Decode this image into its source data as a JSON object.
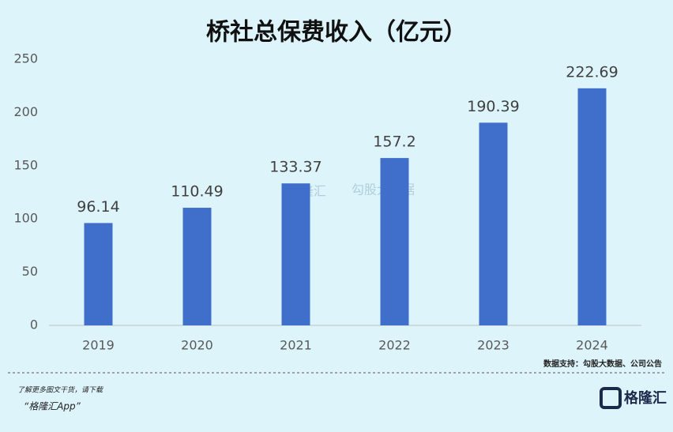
{
  "chart_data": {
    "type": "bar",
    "title": "桥社总保费收入（亿元）",
    "categories": [
      "2019",
      "2020",
      "2021",
      "2022",
      "2023",
      "2024"
    ],
    "values": [
      96.14,
      110.49,
      133.37,
      157.2,
      190.39,
      222.69
    ],
    "color": "#3f6fcb",
    "ylim": [
      0,
      250
    ],
    "yticks": [
      0,
      50,
      100,
      150,
      200,
      250
    ],
    "grid": false,
    "source": "数据支持：勾股大数据、公司公告",
    "watermarks": [
      "格隆汇",
      "勾股大数据"
    ]
  },
  "footer": {
    "line1": "了解更多图文干货，请下载",
    "line2": "“格隆汇App”",
    "logo": "格隆汇"
  }
}
